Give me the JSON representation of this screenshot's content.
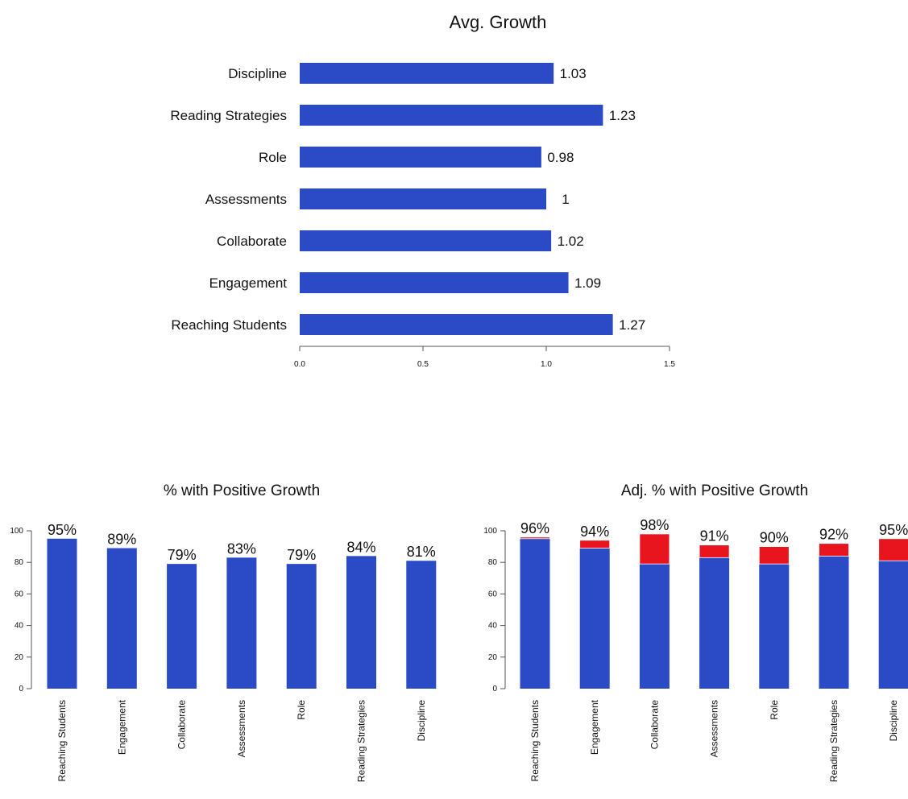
{
  "colors": {
    "base": "#2b4ac6",
    "adjustment": "#e8141e"
  },
  "chart_data": [
    {
      "type": "bar",
      "orientation": "horizontal",
      "title": "Avg. Growth",
      "categories": [
        "Discipline",
        "Reading Strategies",
        "Role",
        "Assessments",
        "Collaborate",
        "Engagement",
        "Reaching Students"
      ],
      "values": [
        1.03,
        1.23,
        0.98,
        1,
        1.02,
        1.09,
        1.27
      ],
      "value_labels": [
        "1.03",
        "1.23",
        "0.98",
        "1",
        "1.02",
        "1.09",
        "1.27"
      ],
      "xlim": [
        0,
        1.5
      ],
      "xticks": [
        "0.0",
        "0.5",
        "1.0",
        "1.5"
      ],
      "grid": false
    },
    {
      "type": "bar",
      "title": "% with Positive Growth",
      "categories": [
        "Reaching Students",
        "Engagement",
        "Collaborate",
        "Assessments",
        "Role",
        "Reading Strategies",
        "Discipline"
      ],
      "values": [
        95,
        89,
        79,
        83,
        79,
        84,
        81
      ],
      "value_labels": [
        "95%",
        "89%",
        "79%",
        "83%",
        "79%",
        "84%",
        "81%"
      ],
      "ylim": [
        0,
        100
      ],
      "yticks": [
        "0",
        "20",
        "40",
        "60",
        "80",
        "100"
      ],
      "grid": false
    },
    {
      "type": "bar",
      "stacked": true,
      "title": "Adj. % with Positive Growth",
      "categories": [
        "Reaching Students",
        "Engagement",
        "Collaborate",
        "Assessments",
        "Role",
        "Reading Strategies",
        "Discipline"
      ],
      "series": [
        {
          "values": [
            95,
            89,
            79,
            83,
            79,
            84,
            81
          ]
        },
        {
          "values": [
            1,
            5,
            19,
            8,
            11,
            8,
            14
          ]
        }
      ],
      "totals": [
        96,
        94,
        98,
        91,
        90,
        92,
        95
      ],
      "value_labels": [
        "96%",
        "94%",
        "98%",
        "91%",
        "90%",
        "92%",
        "95%"
      ],
      "ylim": [
        0,
        100
      ],
      "yticks": [
        "0",
        "20",
        "40",
        "60",
        "80",
        "100"
      ],
      "grid": false
    }
  ]
}
